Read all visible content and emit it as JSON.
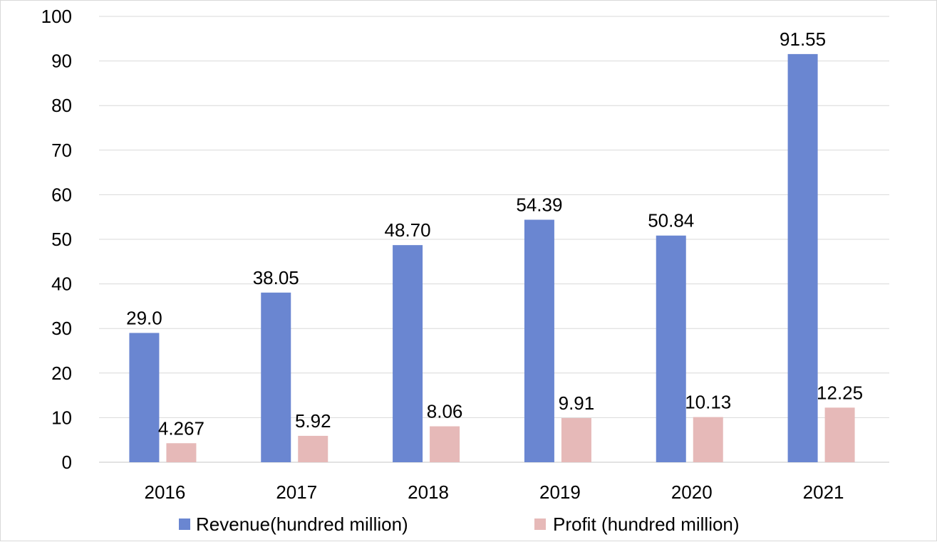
{
  "chart_data": {
    "type": "bar",
    "categories": [
      "2016",
      "2017",
      "2018",
      "2019",
      "2020",
      "2021"
    ],
    "series": [
      {
        "name": "Revenue(hundred million)",
        "color": "#6a86d1",
        "values": [
          29.0,
          38.05,
          48.7,
          54.39,
          50.84,
          91.55
        ],
        "labels": [
          "29.0",
          "38.05",
          "48.70",
          "54.39",
          "50.84",
          "91.55"
        ]
      },
      {
        "name": "Profit (hundred million)",
        "color": "#e6b9b8",
        "values": [
          4.267,
          5.92,
          8.06,
          9.91,
          10.13,
          12.25
        ],
        "labels": [
          "4.267",
          "5.92",
          "8.06",
          "9.91",
          "10.13",
          "12.25"
        ]
      }
    ],
    "title": "",
    "xlabel": "",
    "ylabel": "",
    "ylim": [
      0,
      100
    ],
    "yticks": [
      "0",
      "10",
      "20",
      "30",
      "40",
      "50",
      "60",
      "70",
      "80",
      "90",
      "100"
    ],
    "grid": true,
    "legend_position": "bottom"
  }
}
